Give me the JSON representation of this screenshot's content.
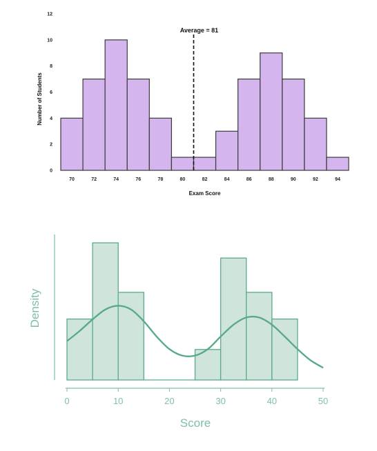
{
  "chart_data": [
    {
      "type": "bar",
      "title": "",
      "xlabel": "Exam Score",
      "ylabel": "Number of Students",
      "bin_edges": [
        69,
        71,
        73,
        75,
        77,
        79,
        81,
        83,
        85,
        87,
        89,
        91,
        93,
        95
      ],
      "values": [
        4,
        7,
        10,
        7,
        4,
        1,
        1,
        3,
        7,
        9,
        7,
        4,
        1
      ],
      "xticks": [
        "70",
        "72",
        "74",
        "76",
        "78",
        "80",
        "82",
        "84",
        "86",
        "88",
        "90",
        "92",
        "94"
      ],
      "xtick_values": [
        70,
        72,
        74,
        76,
        78,
        80,
        82,
        84,
        86,
        88,
        90,
        92,
        94
      ],
      "yticks": [
        "0",
        "2",
        "4",
        "6",
        "8",
        "10",
        "12"
      ],
      "ytick_values": [
        0,
        2,
        4,
        6,
        8,
        10,
        12
      ],
      "ylim": [
        0,
        12
      ],
      "xlim": [
        69,
        95
      ],
      "bar_color": "#d5b5ee",
      "edge_color": "#3a3a3a",
      "annotation": {
        "label": "Average = 81",
        "x": 81,
        "line_style": "dashed"
      }
    },
    {
      "type": "bar",
      "title": "",
      "xlabel": "Score",
      "ylabel": "Density",
      "bin_edges": [
        0,
        5,
        10,
        15,
        20,
        25,
        30,
        35,
        40,
        45
      ],
      "values": [
        0.016,
        0.036,
        0.023,
        0,
        0,
        0.008,
        0.032,
        0.023,
        0.016
      ],
      "xticks": [
        "0",
        "10",
        "20",
        "30",
        "40",
        "50"
      ],
      "xtick_values": [
        0,
        10,
        20,
        30,
        40,
        50
      ],
      "xlim": [
        0,
        50
      ],
      "ylim": [
        0,
        0.04
      ],
      "bar_color": "#cfe5db",
      "edge_color": "#5aaa8a",
      "kde": {
        "x": [
          0,
          2.5,
          5,
          7.5,
          10,
          12.5,
          15,
          17.5,
          20,
          22.5,
          25,
          27.5,
          30,
          32.5,
          35,
          37.5,
          40,
          42.5,
          45,
          47.5,
          50
        ],
        "y": [
          0.0102,
          0.0129,
          0.0159,
          0.0185,
          0.0195,
          0.0185,
          0.0154,
          0.0114,
          0.0081,
          0.0064,
          0.0064,
          0.0081,
          0.0114,
          0.0145,
          0.0164,
          0.0164,
          0.0145,
          0.0114,
          0.0081,
          0.0052,
          0.0032
        ]
      }
    }
  ]
}
